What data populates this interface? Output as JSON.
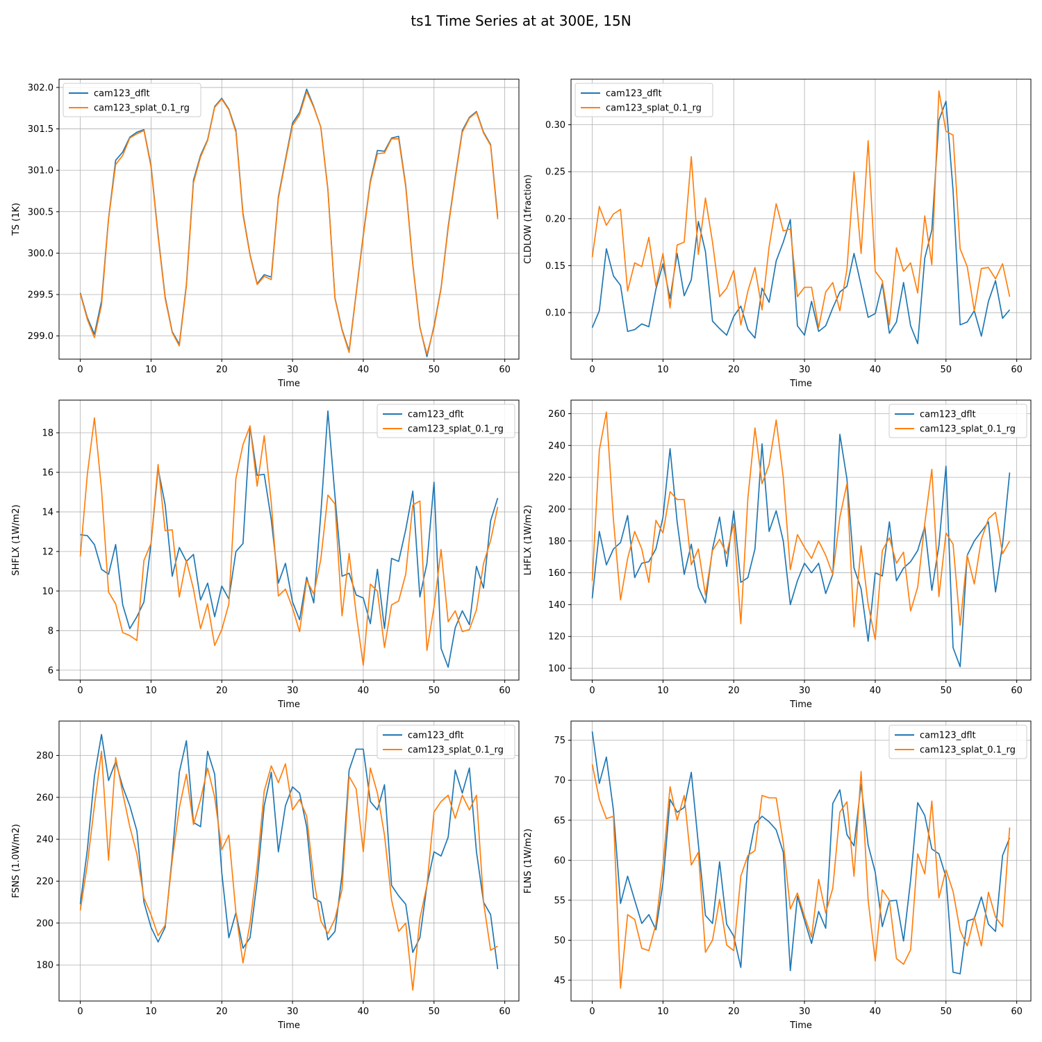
{
  "figure": {
    "title": "ts1 Time Series at at 300E, 15N"
  },
  "colors": {
    "cam123_dflt": "#1f77b4",
    "cam123_splat_0.1_rg": "#ff7f0e"
  },
  "chart_data": [
    {
      "type": "line",
      "xlabel": "Time",
      "ylabel": "TS (1K)",
      "xlim": [
        -3,
        62
      ],
      "ylim": [
        298.72,
        302.1
      ],
      "xticks": [
        0,
        10,
        20,
        30,
        40,
        50,
        60
      ],
      "yticks": [
        299.0,
        299.5,
        300.0,
        300.5,
        301.0,
        301.5,
        302.0
      ],
      "ytick_labels": [
        "299.0",
        "299.5",
        "300.0",
        "300.5",
        "301.0",
        "301.5",
        "302.0"
      ],
      "grid": true,
      "legend_loc": "upper left",
      "series": [
        {
          "name": "cam123_dflt",
          "values": [
            299.52,
            299.22,
            299.02,
            299.42,
            300.42,
            301.12,
            301.22,
            301.4,
            301.46,
            301.49,
            301.06,
            300.22,
            299.47,
            299.05,
            298.9,
            299.62,
            300.88,
            301.18,
            301.37,
            301.77,
            301.87,
            301.74,
            301.48,
            300.48,
            299.98,
            299.63,
            299.74,
            299.71,
            300.68,
            301.13,
            301.57,
            301.7,
            301.98,
            301.77,
            301.52,
            300.77,
            299.46,
            299.08,
            298.82,
            299.52,
            300.22,
            300.87,
            301.24,
            301.23,
            301.39,
            301.41,
            300.82,
            299.87,
            299.11,
            298.75,
            299.12,
            299.58,
            300.32,
            300.92,
            301.48,
            301.64,
            301.71,
            301.46,
            301.31,
            300.44
          ]
        },
        {
          "name": "cam123_splat_0.1_rg",
          "values": [
            299.51,
            299.2,
            298.98,
            299.37,
            300.41,
            301.07,
            301.18,
            301.39,
            301.44,
            301.48,
            301.04,
            300.2,
            299.45,
            299.04,
            298.88,
            299.6,
            300.85,
            301.16,
            301.36,
            301.76,
            301.86,
            301.73,
            301.46,
            300.46,
            299.97,
            299.62,
            299.72,
            299.68,
            300.66,
            301.11,
            301.54,
            301.67,
            301.95,
            301.76,
            301.52,
            300.76,
            299.45,
            299.07,
            298.8,
            299.51,
            300.2,
            300.85,
            301.2,
            301.21,
            301.38,
            301.38,
            300.8,
            299.86,
            299.1,
            298.78,
            299.1,
            299.57,
            300.3,
            300.9,
            301.46,
            301.63,
            301.7,
            301.45,
            301.3,
            300.41
          ]
        }
      ]
    },
    {
      "type": "line",
      "xlabel": "Time",
      "ylabel": "CLDLOW (1fraction)",
      "xlim": [
        -3,
        62
      ],
      "ylim": [
        0.0505,
        0.3485
      ],
      "xticks": [
        0,
        10,
        20,
        30,
        40,
        50,
        60
      ],
      "yticks": [
        0.1,
        0.15,
        0.2,
        0.25,
        0.3
      ],
      "ytick_labels": [
        "0.10",
        "0.15",
        "0.20",
        "0.25",
        "0.30"
      ],
      "grid": true,
      "legend_loc": "upper left",
      "series": [
        {
          "name": "cam123_dflt",
          "values": [
            0.084,
            0.102,
            0.168,
            0.139,
            0.129,
            0.08,
            0.082,
            0.088,
            0.085,
            0.125,
            0.152,
            0.115,
            0.163,
            0.118,
            0.135,
            0.197,
            0.165,
            0.091,
            0.083,
            0.076,
            0.096,
            0.107,
            0.082,
            0.073,
            0.126,
            0.111,
            0.155,
            0.175,
            0.199,
            0.086,
            0.076,
            0.112,
            0.08,
            0.086,
            0.105,
            0.122,
            0.128,
            0.163,
            0.129,
            0.095,
            0.099,
            0.131,
            0.078,
            0.09,
            0.132,
            0.086,
            0.067,
            0.158,
            0.188,
            0.305,
            0.325,
            0.23,
            0.087,
            0.09,
            0.102,
            0.075,
            0.112,
            0.134,
            0.094,
            0.103
          ]
        },
        {
          "name": "cam123_splat_0.1_rg",
          "values": [
            0.159,
            0.213,
            0.193,
            0.205,
            0.21,
            0.123,
            0.153,
            0.149,
            0.18,
            0.128,
            0.163,
            0.105,
            0.172,
            0.175,
            0.266,
            0.162,
            0.222,
            0.175,
            0.117,
            0.126,
            0.145,
            0.087,
            0.123,
            0.148,
            0.103,
            0.17,
            0.216,
            0.187,
            0.189,
            0.117,
            0.127,
            0.127,
            0.084,
            0.122,
            0.132,
            0.102,
            0.146,
            0.25,
            0.163,
            0.283,
            0.144,
            0.134,
            0.087,
            0.169,
            0.144,
            0.153,
            0.121,
            0.203,
            0.151,
            0.336,
            0.293,
            0.289,
            0.168,
            0.149,
            0.102,
            0.147,
            0.148,
            0.136,
            0.152,
            0.117
          ]
        }
      ]
    },
    {
      "type": "line",
      "xlabel": "Time",
      "ylabel": "SHFLX (1W/m2)",
      "xlim": [
        -3,
        62
      ],
      "ylim": [
        5.5,
        19.65
      ],
      "xticks": [
        0,
        10,
        20,
        30,
        40,
        50,
        60
      ],
      "yticks": [
        6,
        8,
        10,
        12,
        14,
        16,
        18
      ],
      "ytick_labels": [
        "6",
        "8",
        "10",
        "12",
        "14",
        "16",
        "18"
      ],
      "grid": true,
      "legend_loc": "upper right",
      "series": [
        {
          "name": "cam123_dflt",
          "values": [
            12.85,
            12.8,
            12.35,
            11.1,
            10.85,
            12.35,
            9.3,
            8.1,
            8.7,
            9.45,
            12.4,
            16.2,
            14.35,
            10.75,
            12.2,
            11.5,
            11.85,
            9.55,
            10.4,
            8.7,
            10.25,
            9.6,
            12.0,
            12.4,
            18.3,
            15.85,
            15.9,
            13.6,
            10.4,
            11.4,
            9.45,
            8.55,
            10.7,
            9.4,
            13.9,
            19.1,
            14.8,
            10.75,
            10.9,
            9.8,
            9.65,
            8.35,
            11.1,
            8.1,
            11.65,
            11.5,
            13.1,
            15.05,
            9.7,
            11.4,
            15.5,
            7.1,
            6.15,
            8.15,
            9.0,
            8.3,
            11.25,
            10.15,
            13.55,
            14.7
          ]
        },
        {
          "name": "cam123_splat_0.1_rg",
          "values": [
            11.75,
            15.9,
            18.75,
            15.15,
            9.95,
            9.35,
            7.9,
            7.75,
            7.5,
            11.55,
            12.4,
            16.4,
            13.05,
            13.1,
            9.7,
            11.55,
            10.1,
            8.1,
            9.35,
            7.25,
            8.05,
            9.35,
            15.7,
            17.4,
            18.35,
            15.3,
            17.85,
            14.45,
            9.75,
            10.1,
            9.15,
            7.95,
            10.55,
            9.85,
            11.6,
            14.85,
            14.4,
            8.75,
            11.9,
            8.85,
            6.25,
            10.35,
            10.0,
            7.15,
            9.3,
            9.5,
            10.85,
            14.35,
            14.55,
            7.0,
            9.2,
            12.1,
            8.45,
            9.0,
            7.95,
            8.05,
            9.05,
            11.4,
            12.55,
            14.25
          ]
        }
      ]
    },
    {
      "type": "line",
      "xlabel": "Time",
      "ylabel": "LHFLX (1W/m2)",
      "xlim": [
        -3,
        62
      ],
      "ylim": [
        92.6,
        268.5
      ],
      "xticks": [
        0,
        10,
        20,
        30,
        40,
        50,
        60
      ],
      "yticks": [
        100,
        120,
        140,
        160,
        180,
        200,
        220,
        240,
        260
      ],
      "ytick_labels": [
        "100",
        "120",
        "140",
        "160",
        "180",
        "200",
        "220",
        "240",
        "260"
      ],
      "grid": true,
      "legend_loc": "upper right",
      "series": [
        {
          "name": "cam123_dflt",
          "values": [
            144,
            186,
            165,
            175,
            179,
            196,
            157,
            166,
            167,
            175,
            195,
            238,
            192,
            159,
            178,
            151,
            141,
            175,
            195,
            164,
            199,
            154,
            157,
            175,
            241,
            186,
            199,
            180,
            140,
            155,
            166,
            160,
            166,
            147,
            159,
            247,
            219,
            163,
            150,
            117,
            160,
            158,
            192,
            155,
            163,
            167,
            174,
            189,
            149,
            177,
            227,
            113,
            101,
            171,
            180,
            186,
            192,
            148,
            178,
            223
          ]
        },
        {
          "name": "cam123_splat_0.1_rg",
          "values": [
            155,
            237,
            261,
            193,
            143,
            169,
            186,
            175,
            154,
            193,
            185,
            211,
            206,
            206,
            165,
            175,
            146,
            174,
            181,
            172,
            191,
            128,
            207,
            251,
            216,
            228,
            256,
            220,
            162,
            184,
            176,
            169,
            180,
            171,
            159,
            195,
            216,
            126,
            177,
            140,
            118,
            174,
            182,
            166,
            173,
            136,
            151,
            191,
            225,
            145,
            185,
            178,
            127,
            171,
            153,
            181,
            194,
            198,
            172,
            180
          ]
        }
      ]
    },
    {
      "type": "line",
      "xlabel": "Time",
      "ylabel": "FSNS (1.0W/m2)",
      "xlim": [
        -3,
        62
      ],
      "ylim": [
        162.8,
        296.4
      ],
      "xticks": [
        0,
        10,
        20,
        30,
        40,
        50,
        60
      ],
      "yticks": [
        180,
        200,
        220,
        240,
        260,
        280
      ],
      "ytick_labels": [
        "180",
        "200",
        "220",
        "240",
        "260",
        "280"
      ],
      "grid": true,
      "legend_loc": "upper right",
      "series": [
        {
          "name": "cam123_dflt",
          "values": [
            209,
            235,
            270,
            290,
            268,
            277,
            265,
            256,
            244,
            210,
            198,
            191,
            198,
            232,
            272,
            287,
            248,
            246,
            282,
            271,
            224,
            193,
            205,
            188,
            193,
            220,
            256,
            272,
            234,
            256,
            265,
            262,
            246,
            212,
            210,
            192,
            196,
            223,
            273,
            283,
            283,
            258,
            254,
            266,
            218,
            213,
            209,
            186,
            193,
            218,
            234,
            232,
            241,
            273,
            262,
            274,
            234,
            210,
            204,
            178
          ]
        },
        {
          "name": "cam123_splat_0.1_rg",
          "values": [
            206,
            228,
            256,
            282,
            230,
            279,
            262,
            246,
            233,
            212,
            204,
            194,
            199,
            230,
            255,
            271,
            247,
            259,
            274,
            260,
            235,
            242,
            205,
            181,
            200,
            227,
            263,
            275,
            267,
            276,
            254,
            259,
            251,
            221,
            201,
            195,
            202,
            216,
            270,
            264,
            234,
            274,
            262,
            242,
            211,
            196,
            200,
            168,
            202,
            218,
            253,
            258,
            261,
            250,
            261,
            254,
            261,
            210,
            187,
            189
          ]
        }
      ]
    },
    {
      "type": "line",
      "xlabel": "Time",
      "ylabel": "FLNS (1W/m2)",
      "xlim": [
        -3,
        62
      ],
      "ylim": [
        42.4,
        77.4
      ],
      "xticks": [
        0,
        10,
        20,
        30,
        40,
        50,
        60
      ],
      "yticks": [
        45,
        50,
        55,
        60,
        65,
        70,
        75
      ],
      "ytick_labels": [
        "45",
        "50",
        "55",
        "60",
        "65",
        "70",
        "75"
      ],
      "grid": true,
      "legend_loc": "upper right",
      "series": [
        {
          "name": "cam123_dflt",
          "values": [
            76.1,
            69.6,
            72.9,
            66.2,
            54.6,
            58.0,
            55.0,
            52.1,
            53.2,
            51.3,
            57.2,
            67.6,
            66.0,
            66.6,
            71.0,
            62.0,
            53.1,
            52.1,
            59.8,
            52.0,
            50.5,
            46.6,
            60.0,
            64.5,
            65.5,
            64.8,
            63.8,
            61.0,
            46.2,
            55.5,
            52.5,
            49.6,
            53.6,
            51.5,
            67.1,
            68.8,
            63.2,
            61.8,
            69.5,
            61.9,
            58.5,
            51.7,
            54.9,
            55.0,
            49.9,
            57.5,
            67.2,
            65.6,
            61.4,
            60.8,
            57.9,
            46.0,
            45.8,
            52.4,
            52.7,
            55.4,
            52.0,
            51.1,
            60.6,
            62.8
          ]
        },
        {
          "name": "cam123_splat_0.1_rg",
          "values": [
            72.0,
            67.6,
            65.2,
            65.5,
            44.0,
            53.2,
            52.6,
            49.0,
            48.7,
            52.0,
            59.4,
            69.2,
            65.0,
            68.1,
            59.4,
            61.0,
            48.5,
            50.0,
            55.1,
            49.4,
            48.7,
            58.0,
            60.6,
            61.2,
            68.1,
            67.8,
            67.8,
            62.2,
            53.9,
            55.9,
            53.0,
            50.4,
            57.6,
            53.4,
            56.5,
            66.0,
            67.3,
            58.0,
            71.1,
            55.0,
            47.4,
            56.3,
            55.0,
            47.7,
            47.0,
            48.8,
            60.8,
            58.3,
            67.4,
            55.3,
            58.8,
            56.1,
            51.2,
            49.3,
            52.9,
            49.3,
            56.0,
            52.9,
            51.7,
            64.1
          ]
        }
      ]
    }
  ]
}
